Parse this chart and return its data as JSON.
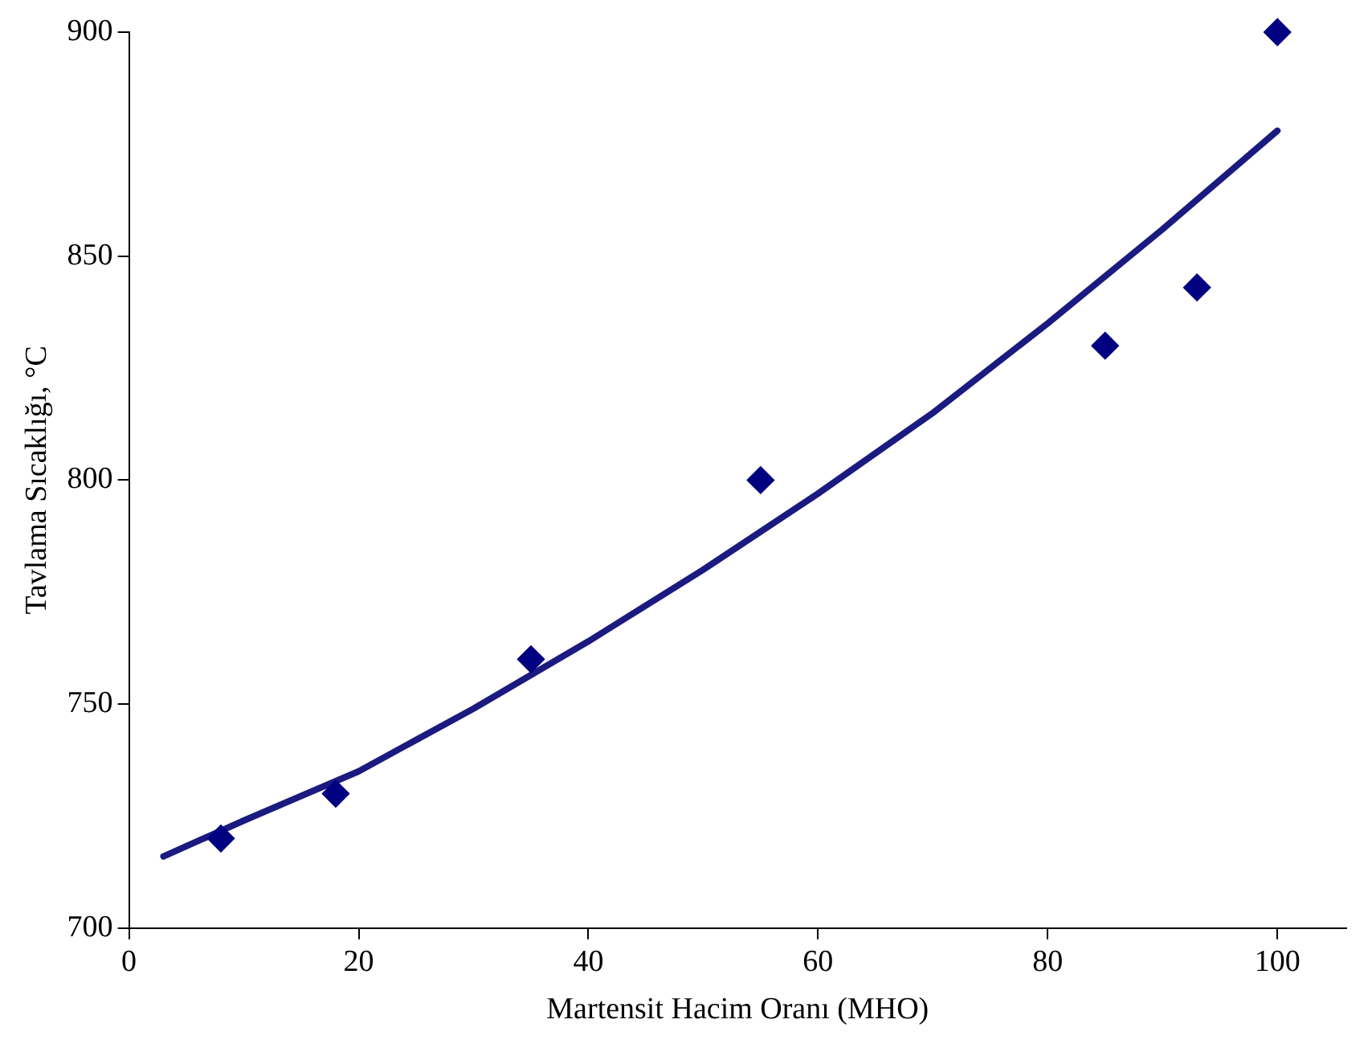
{
  "chart_data": {
    "type": "scatter",
    "xlabel": "Martensit Hacim Oranı (MHO)",
    "ylabel": "Tavlama Sıcaklığı, °C",
    "xlim": [
      0,
      106
    ],
    "xticks": [
      0,
      20,
      40,
      60,
      80,
      100
    ],
    "ylim": [
      700,
      900
    ],
    "yticks": [
      700,
      750,
      800,
      850,
      900
    ],
    "grid": false,
    "legend": false,
    "series": [
      {
        "type": "scatter",
        "color": "#000080",
        "marker": "diamond",
        "x": [
          8,
          18,
          35,
          55,
          85,
          93,
          100
        ],
        "values": [
          720,
          730,
          760,
          800,
          830,
          843,
          900
        ]
      },
      {
        "type": "line",
        "color": "#1a1a80",
        "marker": "none",
        "line_style": "solid",
        "x": [
          3,
          10,
          20,
          30,
          40,
          50,
          60,
          70,
          80,
          90,
          100
        ],
        "values": [
          716,
          724,
          735,
          749,
          764,
          780,
          797,
          815,
          835,
          856,
          878
        ]
      }
    ]
  }
}
